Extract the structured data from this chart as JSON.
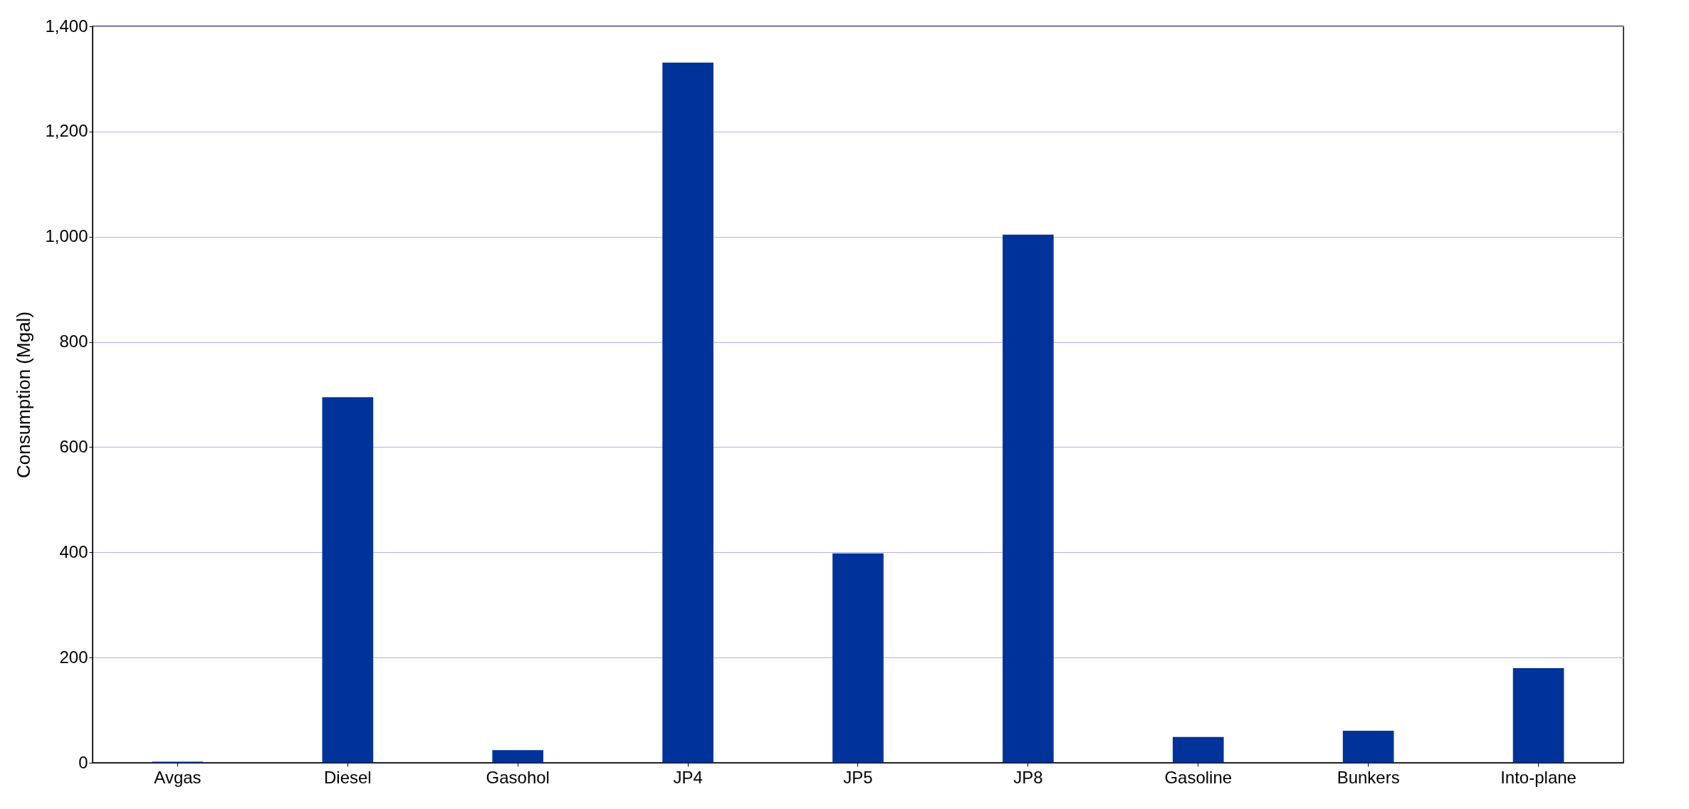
{
  "chart_data": {
    "type": "bar",
    "ylabel": "Consumption (Mgal)",
    "categories": [
      "Avgas",
      "Diesel",
      "Gasohol",
      "JP4",
      "JP5",
      "JP8",
      "Gasoline",
      "Bunkers",
      "Into-plane"
    ],
    "values": [
      2,
      695,
      24,
      1331,
      398,
      1004,
      49,
      61,
      180
    ],
    "color": "#003399",
    "ylim": [
      0,
      1400
    ],
    "yticks": [
      0,
      200,
      400,
      600,
      800,
      {
        "value": 1000,
        "label": "1,000"
      },
      {
        "value": 1200,
        "label": "1,200"
      },
      {
        "value": 1400,
        "label": "1,400"
      }
    ],
    "grid": "y",
    "legend": false
  }
}
